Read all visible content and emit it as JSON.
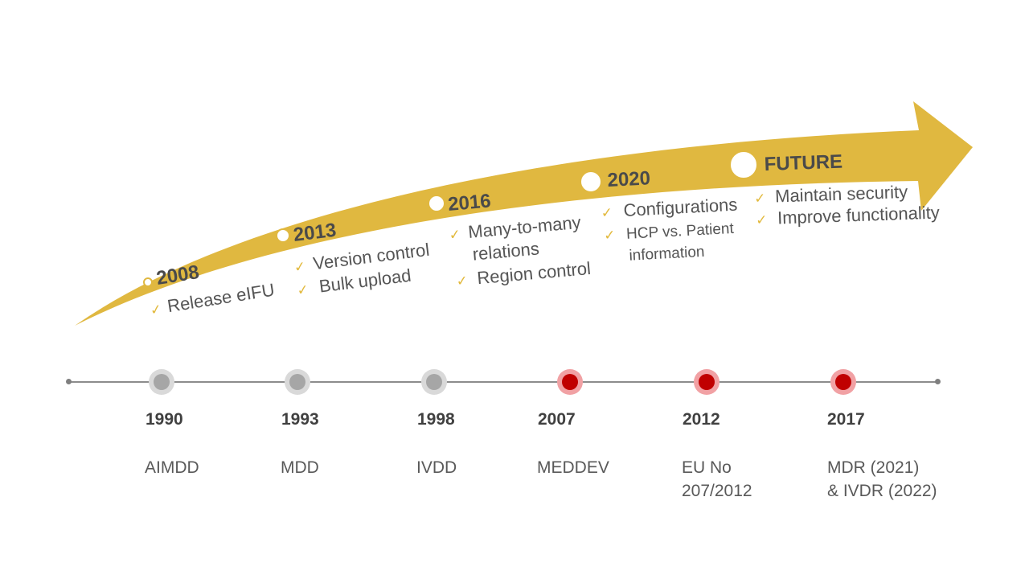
{
  "colors": {
    "arrow": "#e0b840",
    "check": "#e2b93c",
    "legacy_node": "#a6a6a6",
    "current_node": "#c00000",
    "line": "#8c8c8c"
  },
  "milestones": [
    {
      "year": "2008",
      "items": [
        "Release eIFU"
      ]
    },
    {
      "year": "2013",
      "items": [
        "Version control",
        "Bulk upload"
      ]
    },
    {
      "year": "2016",
      "items": [
        "Many-to-many relations",
        "Region control"
      ]
    },
    {
      "year": "2020",
      "items": [
        "Configurations",
        "HCP vs. Patient information"
      ]
    },
    {
      "year": "FUTURE",
      "items": [
        "Maintain security",
        "Improve functionality"
      ]
    }
  ],
  "check_symbol": "✓",
  "regulations": [
    {
      "year": "1990",
      "label": "AIMDD",
      "status": "legacy"
    },
    {
      "year": "1993",
      "label": "MDD",
      "status": "legacy"
    },
    {
      "year": "1998",
      "label": "IVDD",
      "status": "legacy"
    },
    {
      "year": "2007",
      "label": "MEDDEV",
      "status": "current"
    },
    {
      "year": "2012",
      "label": "EU No\n207/2012",
      "status": "current"
    },
    {
      "year": "2017",
      "label": "MDR (2021)\n& IVDR (2022)",
      "status": "current"
    }
  ]
}
